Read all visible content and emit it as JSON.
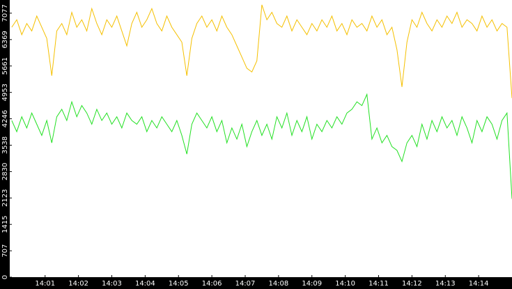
{
  "chart_data": {
    "type": "line",
    "xlim": [
      839.94,
      855.0
    ],
    "xticks": [
      {
        "value": 841,
        "label": "14:01"
      },
      {
        "value": 842,
        "label": "14:02"
      },
      {
        "value": 843,
        "label": "14:03"
      },
      {
        "value": 844,
        "label": "14:04"
      },
      {
        "value": 845,
        "label": "14:05"
      },
      {
        "value": 846,
        "label": "14:06"
      },
      {
        "value": 847,
        "label": "14:07"
      },
      {
        "value": 848,
        "label": "14:08"
      },
      {
        "value": 849,
        "label": "14:09"
      },
      {
        "value": 850,
        "label": "14:10"
      },
      {
        "value": 851,
        "label": "14:11"
      },
      {
        "value": 852,
        "label": "14:12"
      },
      {
        "value": 853,
        "label": "14:13"
      },
      {
        "value": 854,
        "label": "14:14"
      }
    ],
    "ylim": [
      0,
      7430
    ],
    "yticks": [
      0,
      707,
      1415,
      2123,
      2830,
      3538,
      4246,
      4953,
      5661,
      6369,
      7077
    ],
    "x": [
      840.0,
      840.15,
      840.3,
      840.45,
      840.6,
      840.75,
      840.9,
      841.05,
      841.2,
      841.35,
      841.5,
      841.65,
      841.8,
      841.95,
      842.1,
      842.25,
      842.4,
      842.55,
      842.7,
      842.85,
      843.0,
      843.15,
      843.3,
      843.45,
      843.6,
      843.75,
      843.9,
      844.05,
      844.2,
      844.35,
      844.5,
      844.65,
      844.8,
      844.95,
      845.1,
      845.25,
      845.4,
      845.55,
      845.7,
      845.85,
      846.0,
      846.15,
      846.3,
      846.45,
      846.6,
      846.75,
      846.9,
      847.05,
      847.2,
      847.35,
      847.5,
      847.65,
      847.8,
      847.95,
      848.1,
      848.25,
      848.4,
      848.55,
      848.7,
      848.85,
      849.0,
      849.15,
      849.3,
      849.45,
      849.6,
      849.75,
      849.9,
      850.05,
      850.2,
      850.35,
      850.5,
      850.65,
      850.8,
      850.95,
      851.1,
      851.25,
      851.4,
      851.55,
      851.7,
      851.85,
      852.0,
      852.15,
      852.3,
      852.45,
      852.6,
      852.75,
      852.9,
      853.05,
      853.2,
      853.35,
      853.5,
      853.65,
      853.8,
      853.95,
      854.1,
      854.25,
      854.4,
      854.55,
      854.7,
      854.85,
      855.0
    ],
    "series": [
      {
        "color": "#f5c000",
        "values": [
          6700,
          6900,
          6500,
          6800,
          6600,
          7000,
          6700,
          6400,
          5400,
          6600,
          6800,
          6500,
          7100,
          6700,
          6900,
          6600,
          7200,
          6800,
          6500,
          6900,
          6700,
          7000,
          6600,
          6200,
          6800,
          7100,
          6700,
          6900,
          7200,
          6800,
          6600,
          7000,
          6700,
          6500,
          6300,
          5400,
          6400,
          6800,
          7000,
          6700,
          6900,
          6600,
          7000,
          6700,
          6500,
          6200,
          5900,
          5600,
          5500,
          5800,
          7300,
          6900,
          7100,
          6800,
          6700,
          7000,
          6600,
          6900,
          6700,
          6500,
          6800,
          6600,
          6900,
          6700,
          7000,
          6600,
          6800,
          6500,
          6900,
          6700,
          6800,
          6600,
          7000,
          6700,
          6900,
          6500,
          6700,
          6100,
          5100,
          6300,
          6900,
          6700,
          7100,
          6800,
          6600,
          6900,
          6700,
          7000,
          6800,
          7100,
          6700,
          6900,
          6800,
          6600,
          7000,
          6700,
          6900,
          6600,
          6800,
          6700,
          4800
        ]
      },
      {
        "color": "#22e022",
        "values": [
          4200,
          3900,
          4300,
          4000,
          4400,
          4100,
          3800,
          4200,
          3600,
          4300,
          4500,
          4200,
          4700,
          4300,
          4600,
          4400,
          4100,
          4500,
          4200,
          4400,
          4100,
          4300,
          4000,
          4400,
          4200,
          4100,
          4300,
          3900,
          4200,
          4000,
          4300,
          4100,
          3900,
          4200,
          3800,
          3300,
          4100,
          4400,
          4200,
          4000,
          4300,
          3900,
          4200,
          3600,
          4000,
          3700,
          4100,
          3500,
          3900,
          4200,
          3800,
          4100,
          3700,
          4300,
          4000,
          4400,
          3800,
          4200,
          3900,
          4300,
          3700,
          4100,
          3900,
          4200,
          4000,
          4300,
          4100,
          4400,
          4500,
          4700,
          4600,
          4900,
          3700,
          4000,
          3600,
          3800,
          3500,
          3400,
          3100,
          3600,
          3800,
          3500,
          4100,
          3700,
          4200,
          3900,
          4300,
          4000,
          4200,
          3800,
          4300,
          4000,
          3600,
          4200,
          3900,
          4300,
          4100,
          3700,
          4200,
          4400,
          2100
        ]
      }
    ]
  }
}
